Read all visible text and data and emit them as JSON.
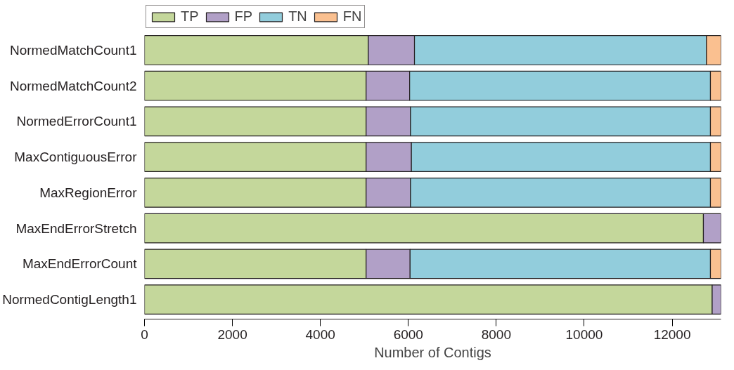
{
  "chart_data": {
    "type": "bar",
    "orientation": "horizontal",
    "stacked": true,
    "xlabel": "Number of Contigs",
    "categories": [
      "NormedMatchCount1",
      "NormedMatchCount2",
      "NormedErrorCount1",
      "MaxContiguousError",
      "MaxRegionError",
      "MaxEndErrorStretch",
      "MaxEndErrorCount",
      "NormedContigLength1"
    ],
    "series": [
      {
        "name": "TP",
        "color": "#c4d79b",
        "values": [
          5090,
          5040,
          5040,
          5040,
          5040,
          12710,
          5040,
          12910
        ]
      },
      {
        "name": "FP",
        "color": "#b1a0c7",
        "values": [
          1050,
          990,
          1010,
          1030,
          1010,
          400,
          1000,
          200
        ]
      },
      {
        "name": "TN",
        "color": "#92cddc",
        "values": [
          6640,
          6840,
          6820,
          6800,
          6820,
          null,
          6830,
          null
        ]
      },
      {
        "name": "FN",
        "color": "#fac090",
        "values": [
          330,
          240,
          240,
          240,
          240,
          null,
          240,
          null
        ]
      }
    ],
    "xlim": [
      0,
      13110
    ],
    "xticks": [
      0,
      2000,
      4000,
      6000,
      8000,
      10000,
      12000
    ],
    "grid": false,
    "legend": "top left"
  }
}
